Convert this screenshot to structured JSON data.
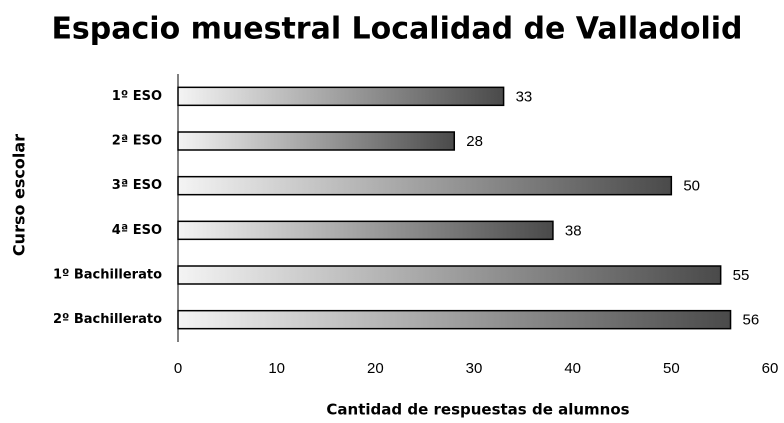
{
  "chart_data": {
    "type": "bar",
    "orientation": "horizontal",
    "title": "Espacio muestral Localidad de Valladolid",
    "xlabel": "Cantidad de respuestas de alumnos",
    "ylabel": "Curso escolar",
    "categories": [
      "1º ESO",
      "2ª ESO",
      "3ª ESO",
      "4ª ESO",
      "1º Bachillerato",
      "2º Bachillerato"
    ],
    "values": [
      33,
      28,
      50,
      38,
      55,
      56
    ],
    "gradient": [
      "#f4f4f4",
      "#4a4a4a"
    ],
    "xlim": [
      0,
      60
    ],
    "xticks": [
      0,
      10,
      20,
      30,
      40,
      50,
      60
    ],
    "grid": false
  }
}
